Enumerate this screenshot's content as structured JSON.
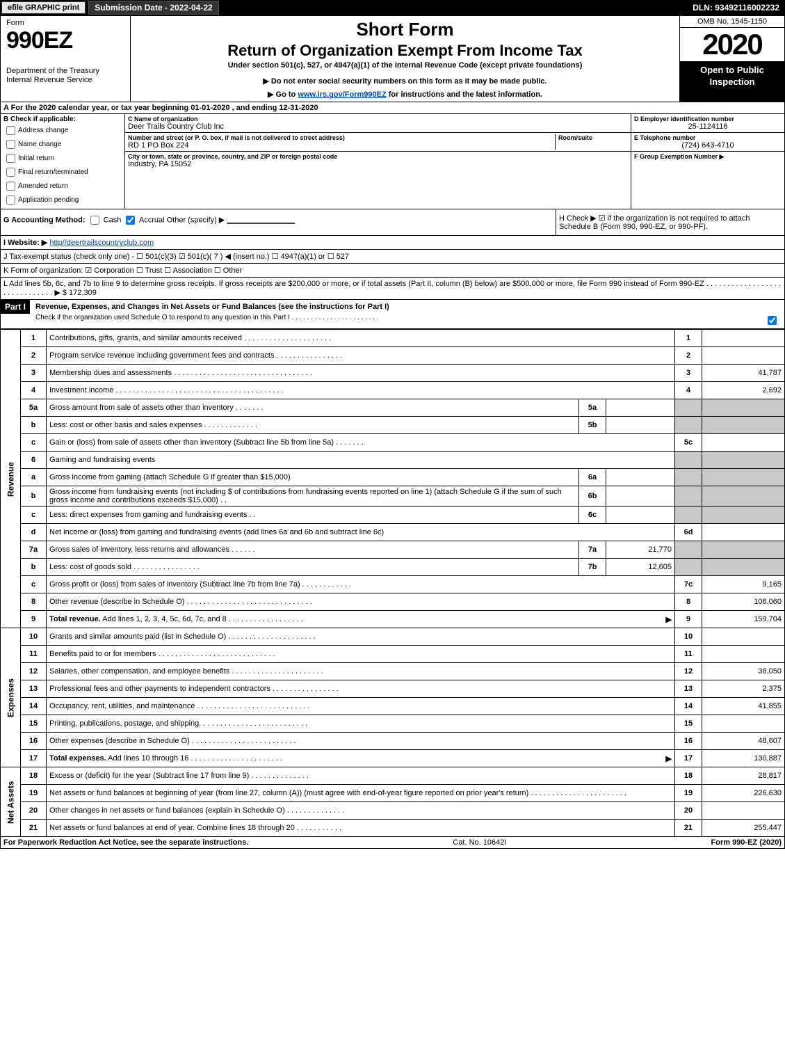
{
  "topbar": {
    "efile": "efile GRAPHIC print",
    "submission": "Submission Date - 2022-04-22",
    "dln": "DLN: 93492116002232"
  },
  "header": {
    "form_label": "Form",
    "form_number": "990EZ",
    "dept": "Department of the Treasury\nInternal Revenue Service",
    "short": "Short Form",
    "title": "Return of Organization Exempt From Income Tax",
    "subtitle": "Under section 501(c), 527, or 4947(a)(1) of the Internal Revenue Code (except private foundations)",
    "instr1": "▶ Do not enter social security numbers on this form as it may be made public.",
    "instr2_prefix": "▶ Go to ",
    "instr2_link": "www.irs.gov/Form990EZ",
    "instr2_suffix": " for instructions and the latest information.",
    "omb": "OMB No. 1545-1150",
    "year": "2020",
    "inspection": "Open to Public Inspection"
  },
  "row_a": "A For the 2020 calendar year, or tax year beginning 01-01-2020 , and ending 12-31-2020",
  "section_b": {
    "label": "B Check if applicable:",
    "items": [
      "Address change",
      "Name change",
      "Initial return",
      "Final return/terminated",
      "Amended return",
      "Application pending"
    ]
  },
  "section_c": {
    "name_label": "C Name of organization",
    "name": "Deer Trails Country Club Inc",
    "addr_label": "Number and street (or P. O. box, if mail is not delivered to street address)",
    "room_label": "Room/suite",
    "addr": "RD 1 PO Box 224",
    "city_label": "City or town, state or province, country, and ZIP or foreign postal code",
    "city": "Industry, PA  15052"
  },
  "section_d": {
    "label": "D Employer identification number",
    "value": "25-1124116"
  },
  "section_e": {
    "label": "E Telephone number",
    "value": "(724) 643-4710"
  },
  "section_f": {
    "label": "F Group Exemption Number  ▶",
    "value": ""
  },
  "row_g": {
    "label": "G Accounting Method:",
    "cash": "Cash",
    "accrual": "Accrual",
    "other": "Other (specify) ▶",
    "blank_line": "________________"
  },
  "row_h": "H  Check ▶ ☑ if the organization is not required to attach Schedule B (Form 990, 990-EZ, or 990-PF).",
  "row_i": {
    "label": "I Website: ▶",
    "value": "http//deertrailscountryclub.com"
  },
  "row_j": "J Tax-exempt status (check only one) - ☐ 501(c)(3) ☑ 501(c)( 7 ) ◀ (insert no.) ☐ 4947(a)(1) or ☐ 527",
  "row_k": "K Form of organization: ☑ Corporation  ☐ Trust  ☐ Association  ☐ Other",
  "row_l": {
    "text": "L Add lines 5b, 6c, and 7b to line 9 to determine gross receipts. If gross receipts are $200,000 or more, or if total assets (Part II, column (B) below) are $500,000 or more, file Form 990 instead of Form 990-EZ . . . . . . . . . . . . . . . . . . . . . . . . . . . . . . ▶ $",
    "amount": "172,309"
  },
  "part1": {
    "label": "Part I",
    "title": "Revenue, Expenses, and Changes in Net Assets or Fund Balances (see the instructions for Part I)",
    "sub": "Check if the organization used Schedule O to respond to any question in this Part I . . . . . . . . . . . . . . . . . . . . . . ."
  },
  "revenue_label": "Revenue",
  "expenses_label": "Expenses",
  "netassets_label": "Net Assets",
  "lines": [
    {
      "no": "1",
      "desc": "Contributions, gifts, grants, and similar amounts received . . . . . . . . . . . . . . . . . . . . .",
      "col": "1",
      "amt": ""
    },
    {
      "no": "2",
      "desc": "Program service revenue including government fees and contracts . . . . . . . . . . . . . . . .",
      "col": "2",
      "amt": ""
    },
    {
      "no": "3",
      "desc": "Membership dues and assessments . . . . . . . . . . . . . . . . . . . . . . . . . . . . . . . . .",
      "col": "3",
      "amt": "41,787"
    },
    {
      "no": "4",
      "desc": "Investment income . . . . . . . . . . . . . . . . . . . . . . . . . . . . . . . . . . . . . . . .",
      "col": "4",
      "amt": "2,692"
    },
    {
      "no": "5a",
      "desc": "Gross amount from sale of assets other than inventory . . . . . . .",
      "sub": "5a",
      "subval": ""
    },
    {
      "no": "b",
      "desc": "Less: cost or other basis and sales expenses . . . . . . . . . . . . .",
      "sub": "5b",
      "subval": ""
    },
    {
      "no": "c",
      "desc": "Gain or (loss) from sale of assets other than inventory (Subtract line 5b from line 5a) . . . . . . .",
      "col": "5c",
      "amt": ""
    },
    {
      "no": "6",
      "desc": "Gaming and fundraising events"
    },
    {
      "no": "a",
      "desc": "Gross income from gaming (attach Schedule G if greater than $15,000)",
      "sub": "6a",
      "subval": ""
    },
    {
      "no": "b",
      "desc": "Gross income from fundraising events (not including $               of contributions from fundraising events reported on line 1) (attach Schedule G if the sum of such gross income and contributions exceeds $15,000)   . .",
      "sub": "6b",
      "subval": ""
    },
    {
      "no": "c",
      "desc": "Less: direct expenses from gaming and fundraising events   . .",
      "sub": "6c",
      "subval": ""
    },
    {
      "no": "d",
      "desc": "Net income or (loss) from gaming and fundraising events (add lines 6a and 6b and subtract line 6c)",
      "col": "6d",
      "amt": ""
    },
    {
      "no": "7a",
      "desc": "Gross sales of inventory, less returns and allowances . . . . . .",
      "sub": "7a",
      "subval": "21,770"
    },
    {
      "no": "b",
      "desc": "Less: cost of goods sold   . . . . . . . . . . . . . . . .",
      "sub": "7b",
      "subval": "12,605"
    },
    {
      "no": "c",
      "desc": "Gross profit or (loss) from sales of inventory (Subtract line 7b from line 7a) . . . . . . . . . . . .",
      "col": "7c",
      "amt": "9,165"
    },
    {
      "no": "8",
      "desc": "Other revenue (describe in Schedule O) . . . . . . . . . . . . . . . . . . . . . . . . . . . . . .",
      "col": "8",
      "amt": "106,060"
    },
    {
      "no": "9",
      "desc": "Total revenue. Add lines 1, 2, 3, 4, 5c, 6d, 7c, and 8 . . . . . . . . . . . . . . . . . .",
      "col": "9",
      "amt": "159,704",
      "bold": true,
      "arrow": true
    }
  ],
  "expense_lines": [
    {
      "no": "10",
      "desc": "Grants and similar amounts paid (list in Schedule O) . . . . . . . . . . . . . . . . . . . . .",
      "col": "10",
      "amt": ""
    },
    {
      "no": "11",
      "desc": "Benefits paid to or for members   . . . . . . . . . . . . . . . . . . . . . . . . . . . .",
      "col": "11",
      "amt": ""
    },
    {
      "no": "12",
      "desc": "Salaries, other compensation, and employee benefits . . . . . . . . . . . . . . . . . . . . . .",
      "col": "12",
      "amt": "38,050"
    },
    {
      "no": "13",
      "desc": "Professional fees and other payments to independent contractors . . . . . . . . . . . . . . . .",
      "col": "13",
      "amt": "2,375"
    },
    {
      "no": "14",
      "desc": "Occupancy, rent, utilities, and maintenance . . . . . . . . . . . . . . . . . . . . . . . . . . .",
      "col": "14",
      "amt": "41,855"
    },
    {
      "no": "15",
      "desc": "Printing, publications, postage, and shipping. . . . . . . . . . . . . . . . . . . . . . . . . .",
      "col": "15",
      "amt": ""
    },
    {
      "no": "16",
      "desc": "Other expenses (describe in Schedule O)   . . . . . . . . . . . . . . . . . . . . . . . . .",
      "col": "16",
      "amt": "48,607"
    },
    {
      "no": "17",
      "desc": "Total expenses. Add lines 10 through 16   . . . . . . . . . . . . . . . . . . . . . .",
      "col": "17",
      "amt": "130,887",
      "bold": true,
      "arrow": true
    }
  ],
  "netasset_lines": [
    {
      "no": "18",
      "desc": "Excess or (deficit) for the year (Subtract line 17 from line 9)   . . . . . . . . . . . . . .",
      "col": "18",
      "amt": "28,817"
    },
    {
      "no": "19",
      "desc": "Net assets or fund balances at beginning of year (from line 27, column (A)) (must agree with end-of-year figure reported on prior year's return) . . . . . . . . . . . . . . . . . . . . . . .",
      "col": "19",
      "amt": "226,630"
    },
    {
      "no": "20",
      "desc": "Other changes in net assets or fund balances (explain in Schedule O) . . . . . . . . . . . . . .",
      "col": "20",
      "amt": ""
    },
    {
      "no": "21",
      "desc": "Net assets or fund balances at end of year. Combine lines 18 through 20 . . . . . . . . . . .",
      "col": "21",
      "amt": "255,447"
    }
  ],
  "footer": {
    "left": "For Paperwork Reduction Act Notice, see the separate instructions.",
    "center": "Cat. No. 10642I",
    "right": "Form 990-EZ (2020)"
  }
}
